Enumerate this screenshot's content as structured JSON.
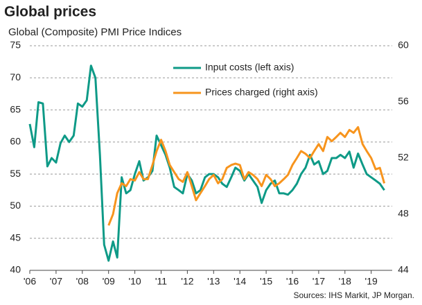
{
  "chart_data": {
    "type": "line",
    "title": "Global prices",
    "subtitle": "Global  (Composite) PMI Price Indices",
    "source": "Sources: IHS Markit, JP Morgan.",
    "x": [
      2006.0,
      2006.17,
      2006.33,
      2006.5,
      2006.67,
      2006.83,
      2007.0,
      2007.17,
      2007.33,
      2007.5,
      2007.67,
      2007.83,
      2008.0,
      2008.17,
      2008.33,
      2008.5,
      2008.67,
      2008.83,
      2009.0,
      2009.17,
      2009.33,
      2009.5,
      2009.67,
      2009.83,
      2010.0,
      2010.17,
      2010.33,
      2010.5,
      2010.67,
      2010.83,
      2011.0,
      2011.17,
      2011.33,
      2011.5,
      2011.67,
      2011.83,
      2012.0,
      2012.17,
      2012.33,
      2012.5,
      2012.67,
      2012.83,
      2013.0,
      2013.17,
      2013.33,
      2013.5,
      2013.67,
      2013.83,
      2014.0,
      2014.17,
      2014.33,
      2014.5,
      2014.67,
      2014.83,
      2015.0,
      2015.17,
      2015.33,
      2015.5,
      2015.67,
      2015.83,
      2016.0,
      2016.17,
      2016.33,
      2016.5,
      2016.67,
      2016.83,
      2017.0,
      2017.17,
      2017.33,
      2017.5,
      2017.67,
      2017.83,
      2018.0,
      2018.17,
      2018.33,
      2018.5,
      2018.67,
      2018.83,
      2019.0,
      2019.17,
      2019.33,
      2019.5
    ],
    "series": [
      {
        "name": "Input costs (left axis)",
        "color": "#0e9a87",
        "axis": "y",
        "values": [
          62.8,
          59.2,
          66.2,
          66.0,
          56.2,
          57.5,
          56.8,
          59.8,
          61.0,
          60.0,
          61.0,
          66.0,
          65.5,
          66.5,
          71.9,
          70.0,
          58.0,
          44.0,
          41.5,
          44.5,
          42.0,
          54.5,
          52.0,
          52.5,
          55.0,
          57.0,
          54.0,
          54.5,
          55.5,
          61.0,
          59.5,
          58.0,
          56.0,
          53.0,
          52.5,
          52.0,
          55.0,
          54.0,
          52.0,
          52.5,
          54.5,
          55.0,
          55.0,
          54.5,
          53.5,
          53.0,
          54.5,
          56.0,
          55.5,
          54.0,
          55.0,
          54.0,
          53.0,
          50.5,
          52.5,
          53.5,
          54.0,
          52.0,
          52.0,
          51.8,
          52.5,
          53.5,
          55.0,
          56.0,
          58.0,
          56.5,
          57.0,
          55.0,
          55.5,
          57.5,
          57.5,
          58.0,
          57.5,
          58.5,
          56.0,
          58.2,
          56.5,
          55.0,
          54.5,
          54.0,
          53.5,
          52.5
        ]
      },
      {
        "name": "Prices charged (right axis)",
        "color": "#f7941d",
        "axis": "y2",
        "values": [
          null,
          null,
          null,
          null,
          null,
          null,
          null,
          null,
          null,
          null,
          null,
          null,
          null,
          null,
          null,
          null,
          null,
          null,
          47.2,
          48.0,
          49.5,
          50.2,
          50.0,
          50.5,
          50.4,
          51.0,
          50.5,
          50.5,
          51.5,
          52.5,
          53.3,
          52.5,
          51.5,
          51.0,
          50.5,
          50.3,
          51.0,
          50.0,
          49.0,
          49.5,
          50.0,
          50.5,
          50.8,
          50.2,
          50.5,
          51.3,
          51.5,
          51.6,
          51.5,
          50.5,
          51.0,
          50.8,
          50.5,
          50.0,
          50.8,
          50.5,
          50.0,
          50.2,
          50.5,
          50.8,
          51.5,
          52.0,
          52.5,
          52.3,
          52.0,
          52.5,
          53.0,
          52.5,
          53.5,
          53.2,
          53.5,
          53.8,
          53.5,
          54.0,
          53.8,
          54.2,
          53.0,
          52.5,
          52.0,
          51.2,
          51.3,
          50.2
        ]
      }
    ],
    "xlim": [
      2006,
      2019.8
    ],
    "xticks": [
      {
        "value": 2006,
        "label": "'06"
      },
      {
        "value": 2007,
        "label": "'07"
      },
      {
        "value": 2008,
        "label": "'08"
      },
      {
        "value": 2009,
        "label": "'09"
      },
      {
        "value": 2010,
        "label": "'10"
      },
      {
        "value": 2011,
        "label": "'11"
      },
      {
        "value": 2012,
        "label": "'12"
      },
      {
        "value": 2013,
        "label": "'13"
      },
      {
        "value": 2014,
        "label": "'14"
      },
      {
        "value": 2015,
        "label": "'15"
      },
      {
        "value": 2016,
        "label": "'16"
      },
      {
        "value": 2017,
        "label": "'17"
      },
      {
        "value": 2018,
        "label": "'18"
      },
      {
        "value": 2019,
        "label": "'19"
      }
    ],
    "ylim": [
      40,
      75
    ],
    "yticks": [
      40,
      45,
      50,
      55,
      60,
      65,
      70,
      75
    ],
    "y2lim": [
      44,
      60
    ],
    "y2ticks": [
      44,
      48,
      52,
      56,
      60
    ],
    "grid": true
  }
}
